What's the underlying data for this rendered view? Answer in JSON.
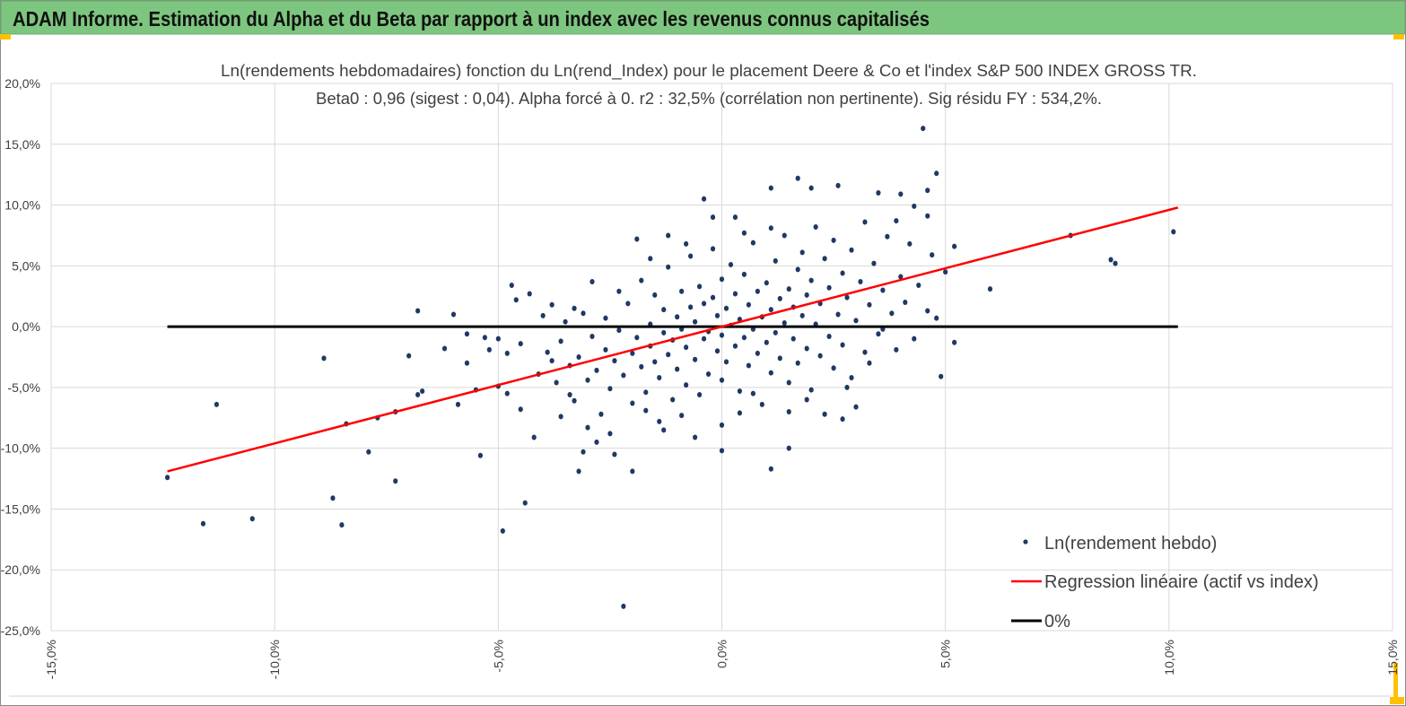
{
  "header": {
    "title": "ADAM Informe. Estimation du Alpha et du Beta par rapport à un index avec les revenus connus capitalisés"
  },
  "colors": {
    "header_bg": "#7dc67f",
    "points": "#203864",
    "regression": "#ff0000",
    "zero": "#000000",
    "grid": "#d9d9d9",
    "accent": "#ffc000"
  },
  "chart_data": {
    "type": "scatter",
    "title": "Ln(rendements hebdomadaires) fonction du Ln(rend_Index) pour le placement Deere & Co et l'index S&P 500 INDEX GROSS TR.",
    "subtitle": "Beta0 : 0,96 (sigest : 0,04). Alpha forcé à 0. r2 : 32,5% (corrélation non pertinente). Sig résidu FY : 534,2%.",
    "xlabel": "",
    "ylabel": "",
    "xlim": [
      -15,
      15
    ],
    "ylim": [
      -25,
      20
    ],
    "x_ticks": [
      -15,
      -10,
      -5,
      0,
      5,
      10,
      15
    ],
    "x_tick_labels": [
      "-15,0%",
      "-10,0%",
      "-5,0%",
      "0,0%",
      "5,0%",
      "10,0%",
      "15,0%"
    ],
    "y_ticks": [
      20,
      15,
      10,
      5,
      0,
      -5,
      -10,
      -15,
      -20,
      -25
    ],
    "y_tick_labels": [
      "20,0%",
      "15,0%",
      "10,0%",
      "5,0%",
      "0,0%",
      "-5,0%",
      "-10,0%",
      "-15,0%",
      "-20,0%",
      "-25,0%"
    ],
    "grid": true,
    "legend_position": "bottom-right",
    "legend": [
      "Ln(rendement hebdo)",
      "Regression linéaire (actif vs index)",
      "0%"
    ],
    "regression": {
      "beta": 0.96,
      "alpha": 0,
      "x_range": [
        -12.4,
        10.2
      ]
    },
    "zero_line": {
      "y": 0,
      "x_range": [
        -12.4,
        10.2
      ]
    },
    "series": [
      {
        "name": "Ln(rendement hebdo)",
        "points": [
          [
            -12.4,
            -12.4
          ],
          [
            -11.6,
            -16.2
          ],
          [
            -11.3,
            -6.4
          ],
          [
            -10.5,
            -15.8
          ],
          [
            -8.9,
            -2.6
          ],
          [
            -8.7,
            -14.1
          ],
          [
            -8.5,
            -16.3
          ],
          [
            -8.4,
            -8.0
          ],
          [
            -7.9,
            -10.3
          ],
          [
            -7.7,
            -7.5
          ],
          [
            -7.3,
            -7.0
          ],
          [
            -7.3,
            -12.7
          ],
          [
            -7.0,
            -2.4
          ],
          [
            -6.8,
            1.3
          ],
          [
            -6.8,
            -5.6
          ],
          [
            -6.7,
            -5.3
          ],
          [
            -6.2,
            -1.8
          ],
          [
            -6.0,
            1.0
          ],
          [
            -5.9,
            -6.4
          ],
          [
            -5.7,
            -0.6
          ],
          [
            -5.7,
            -3.0
          ],
          [
            -5.5,
            -5.2
          ],
          [
            -5.4,
            -10.6
          ],
          [
            -5.3,
            -0.9
          ],
          [
            -5.2,
            -1.9
          ],
          [
            -5.0,
            -4.9
          ],
          [
            -4.9,
            -16.8
          ],
          [
            -4.8,
            -5.5
          ],
          [
            -4.7,
            3.4
          ],
          [
            -4.6,
            2.2
          ],
          [
            -4.5,
            -6.8
          ],
          [
            -4.4,
            -14.5
          ],
          [
            -4.3,
            2.7
          ],
          [
            -4.2,
            -9.1
          ],
          [
            -3.8,
            1.8
          ],
          [
            -3.2,
            -11.9
          ],
          [
            -3.1,
            -10.3
          ],
          [
            -2.8,
            -9.5
          ],
          [
            -2.4,
            -10.5
          ],
          [
            -2.2,
            -23.0
          ],
          [
            -1.9,
            7.2
          ],
          [
            -1.2,
            7.5
          ],
          [
            -0.6,
            -9.1
          ],
          [
            -0.4,
            10.5
          ],
          [
            0.0,
            -8.1
          ],
          [
            0.0,
            -10.2
          ],
          [
            -0.2,
            9.0
          ],
          [
            0.3,
            9.0
          ],
          [
            1.1,
            -11.7
          ],
          [
            1.1,
            11.4
          ],
          [
            1.5,
            -10.0
          ],
          [
            1.7,
            12.2
          ],
          [
            2.0,
            11.4
          ],
          [
            2.3,
            -7.2
          ],
          [
            2.6,
            11.6
          ],
          [
            2.7,
            -7.6
          ],
          [
            3.5,
            11.0
          ],
          [
            4.5,
            16.3
          ],
          [
            4.8,
            12.6
          ],
          [
            4.6,
            11.2
          ],
          [
            4.6,
            9.1
          ],
          [
            4.9,
            -4.1
          ],
          [
            5.2,
            -1.3
          ],
          [
            5.2,
            6.6
          ],
          [
            6.0,
            3.1
          ],
          [
            7.8,
            7.5
          ],
          [
            8.7,
            5.5
          ],
          [
            8.8,
            5.2
          ],
          [
            10.1,
            7.8
          ],
          [
            3.9,
            8.7
          ],
          [
            4.0,
            10.9
          ],
          [
            4.3,
            9.9
          ],
          [
            -4.1,
            -3.9
          ],
          [
            -3.9,
            -2.1
          ],
          [
            -3.7,
            -4.6
          ],
          [
            -3.6,
            -1.2
          ],
          [
            -3.5,
            0.4
          ],
          [
            -3.4,
            -3.2
          ],
          [
            -3.3,
            -6.1
          ],
          [
            -3.2,
            -2.5
          ],
          [
            -3.1,
            1.1
          ],
          [
            -3.0,
            -4.4
          ],
          [
            -2.9,
            -0.8
          ],
          [
            -2.8,
            -3.6
          ],
          [
            -2.7,
            -7.2
          ],
          [
            -2.6,
            -1.9
          ],
          [
            -2.6,
            0.7
          ],
          [
            -2.5,
            -5.1
          ],
          [
            -2.4,
            -2.8
          ],
          [
            -2.3,
            -0.3
          ],
          [
            -2.2,
            -4.0
          ],
          [
            -2.1,
            1.9
          ],
          [
            -2.0,
            -6.3
          ],
          [
            -2.0,
            -2.2
          ],
          [
            -1.9,
            -0.9
          ],
          [
            -1.8,
            -3.3
          ],
          [
            -1.8,
            3.8
          ],
          [
            -1.7,
            -5.4
          ],
          [
            -1.6,
            -1.6
          ],
          [
            -1.6,
            0.2
          ],
          [
            -1.5,
            -2.9
          ],
          [
            -1.5,
            2.6
          ],
          [
            -1.4,
            -7.8
          ],
          [
            -1.4,
            -4.2
          ],
          [
            -1.3,
            -0.5
          ],
          [
            -1.3,
            1.4
          ],
          [
            -1.2,
            -2.3
          ],
          [
            -1.2,
            4.9
          ],
          [
            -1.1,
            -6.0
          ],
          [
            -1.1,
            -1.1
          ],
          [
            -1.0,
            0.8
          ],
          [
            -1.0,
            -3.5
          ],
          [
            -0.9,
            2.9
          ],
          [
            -0.9,
            -0.2
          ],
          [
            -0.8,
            -4.8
          ],
          [
            -0.8,
            -1.7
          ],
          [
            -0.7,
            1.6
          ],
          [
            -0.7,
            5.8
          ],
          [
            -0.6,
            -2.7
          ],
          [
            -0.6,
            0.4
          ],
          [
            -0.5,
            -5.6
          ],
          [
            -0.5,
            3.3
          ],
          [
            -0.4,
            -1.0
          ],
          [
            -0.4,
            1.9
          ],
          [
            -0.3,
            -3.9
          ],
          [
            -0.3,
            -0.4
          ],
          [
            -0.2,
            2.4
          ],
          [
            -0.2,
            6.4
          ],
          [
            -0.1,
            -2.0
          ],
          [
            -0.1,
            0.9
          ],
          [
            0.0,
            -4.4
          ],
          [
            0.0,
            3.9
          ],
          [
            0.0,
            -0.7
          ],
          [
            0.1,
            1.5
          ],
          [
            0.1,
            -2.9
          ],
          [
            0.2,
            5.1
          ],
          [
            0.2,
            0.1
          ],
          [
            0.3,
            -1.6
          ],
          [
            0.3,
            2.7
          ],
          [
            0.4,
            -5.3
          ],
          [
            0.4,
            0.6
          ],
          [
            0.5,
            -0.9
          ],
          [
            0.5,
            4.3
          ],
          [
            0.6,
            -3.2
          ],
          [
            0.6,
            1.8
          ],
          [
            0.7,
            -0.2
          ],
          [
            0.7,
            6.9
          ],
          [
            0.8,
            -2.2
          ],
          [
            0.8,
            2.9
          ],
          [
            0.9,
            -6.4
          ],
          [
            0.9,
            0.8
          ],
          [
            1.0,
            -1.3
          ],
          [
            1.0,
            3.6
          ],
          [
            1.1,
            -3.8
          ],
          [
            1.1,
            1.4
          ],
          [
            1.2,
            5.4
          ],
          [
            1.2,
            -0.5
          ],
          [
            1.3,
            2.3
          ],
          [
            1.3,
            -2.6
          ],
          [
            1.4,
            0.3
          ],
          [
            1.4,
            7.5
          ],
          [
            1.5,
            -4.6
          ],
          [
            1.5,
            3.1
          ],
          [
            1.6,
            -1.0
          ],
          [
            1.6,
            1.6
          ],
          [
            1.7,
            4.7
          ],
          [
            1.7,
            -3.0
          ],
          [
            1.8,
            0.9
          ],
          [
            1.8,
            6.1
          ],
          [
            1.9,
            -1.8
          ],
          [
            1.9,
            2.6
          ],
          [
            2.0,
            -5.2
          ],
          [
            2.0,
            3.8
          ],
          [
            2.1,
            0.2
          ],
          [
            2.1,
            8.2
          ],
          [
            2.2,
            -2.4
          ],
          [
            2.2,
            1.9
          ],
          [
            2.3,
            5.6
          ],
          [
            2.4,
            -0.8
          ],
          [
            2.4,
            3.2
          ],
          [
            2.5,
            -3.4
          ],
          [
            2.5,
            7.1
          ],
          [
            2.6,
            1.0
          ],
          [
            2.7,
            4.4
          ],
          [
            2.7,
            -1.5
          ],
          [
            2.8,
            2.4
          ],
          [
            2.9,
            6.3
          ],
          [
            2.9,
            -4.2
          ],
          [
            3.0,
            0.5
          ],
          [
            3.1,
            3.7
          ],
          [
            3.2,
            -2.1
          ],
          [
            3.2,
            8.6
          ],
          [
            3.3,
            1.8
          ],
          [
            3.4,
            5.2
          ],
          [
            3.5,
            -0.6
          ],
          [
            3.6,
            3.0
          ],
          [
            3.7,
            7.4
          ],
          [
            3.8,
            1.1
          ],
          [
            3.9,
            -1.9
          ],
          [
            4.0,
            4.1
          ],
          [
            4.1,
            2.0
          ],
          [
            4.2,
            6.8
          ],
          [
            4.4,
            3.4
          ],
          [
            4.6,
            1.3
          ],
          [
            4.7,
            5.9
          ],
          [
            4.8,
            0.7
          ],
          [
            5.0,
            4.5
          ],
          [
            -3.6,
            -7.4
          ],
          [
            -3.0,
            -8.3
          ],
          [
            -2.5,
            -8.8
          ],
          [
            -1.7,
            -6.9
          ],
          [
            -0.9,
            -7.3
          ],
          [
            0.4,
            -7.1
          ],
          [
            1.9,
            -6.0
          ],
          [
            2.8,
            -5.0
          ],
          [
            3.3,
            -3.0
          ],
          [
            -5.0,
            -1.0
          ],
          [
            -4.0,
            0.9
          ],
          [
            -3.3,
            1.5
          ],
          [
            -2.9,
            3.7
          ],
          [
            -2.3,
            2.9
          ],
          [
            -1.6,
            5.6
          ],
          [
            -0.8,
            6.8
          ],
          [
            0.5,
            7.7
          ],
          [
            1.1,
            8.1
          ],
          [
            -2.0,
            -11.9
          ],
          [
            -1.3,
            -8.5
          ],
          [
            0.7,
            -5.5
          ],
          [
            1.5,
            -7.0
          ],
          [
            3.0,
            -6.6
          ],
          [
            3.6,
            -0.2
          ],
          [
            4.3,
            -1.0
          ],
          [
            -4.8,
            -2.2
          ],
          [
            -4.5,
            -1.4
          ],
          [
            -3.8,
            -2.8
          ],
          [
            -3.4,
            -5.6
          ]
        ]
      }
    ]
  }
}
